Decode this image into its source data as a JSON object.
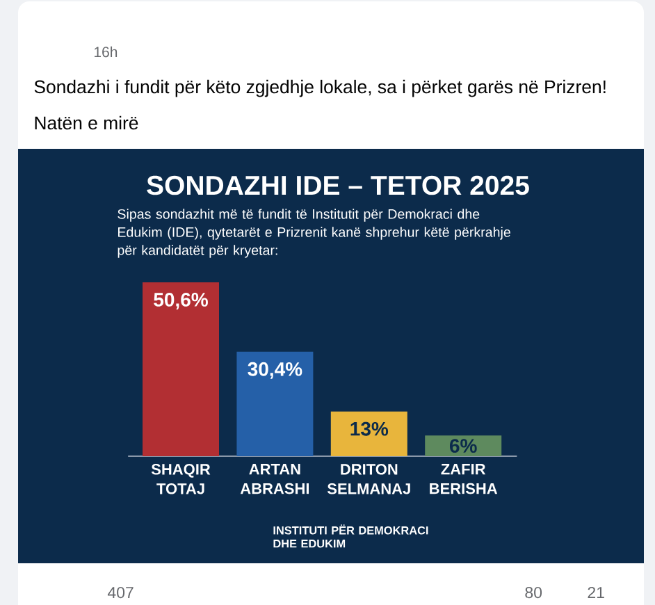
{
  "chart_data": {
    "type": "bar",
    "title": "SONDAZHI IDE – TETOR 2025",
    "subtitle": "Sipas sondazhit më të fundit të Institutit për Demokraci dhe Edukim (IDE), qytetarët e Prizrenit kanë shprehur këtë përkrahje për kandidatët për kryetar:",
    "categories": [
      "SHAQIR TOTAJ",
      "ARTAN ABRASHI",
      "DRITON SELMANAJ",
      "ZAFIR BERISHA"
    ],
    "values": [
      50.6,
      30.4,
      13,
      6
    ],
    "colors": [
      "#b22f33",
      "#2560a8",
      "#e8b53c",
      "#5e8a5e"
    ],
    "value_labels": [
      "50,6%",
      "30,4%",
      "13%",
      "6%"
    ],
    "annotations": [
      "16h",
      "Sondazhi i fundit për këto zgjedhje lokale, sa i përket garës në Prizren!",
      "Natën e mirë",
      "INSTITUTI PËR DEMOKRACI DHE EDUKIM",
      "407",
      "80",
      "21"
    ]
  }
}
